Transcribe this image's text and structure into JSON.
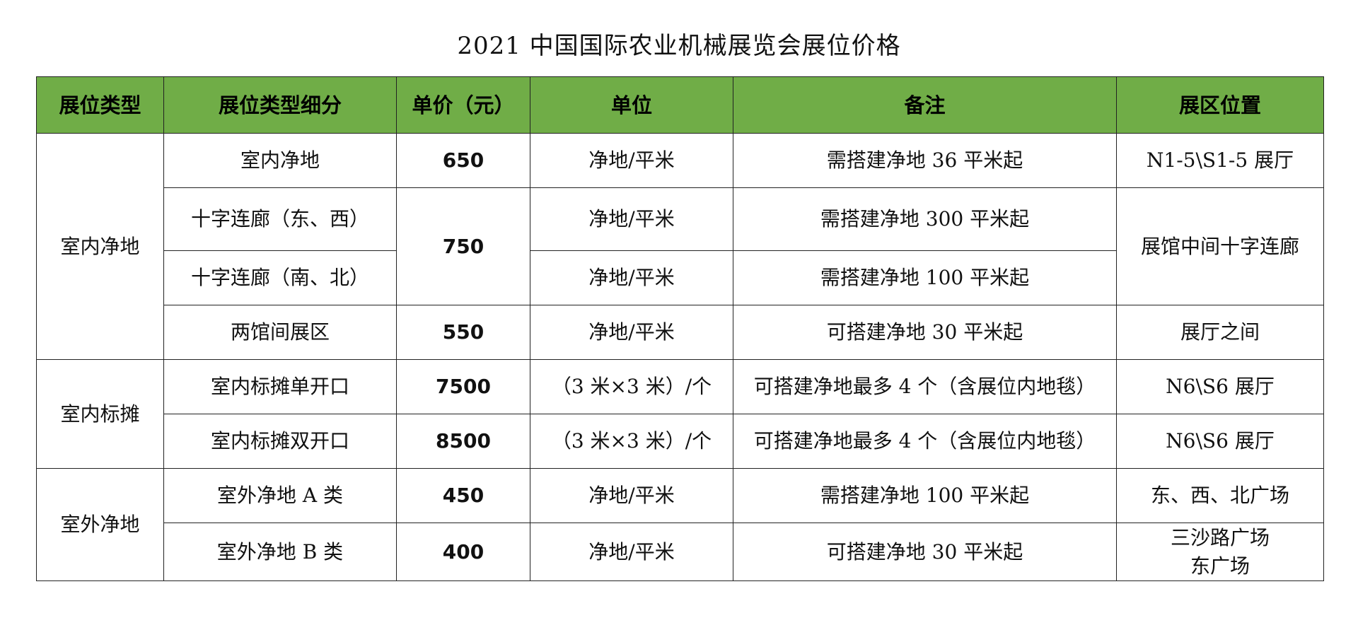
{
  "title": "2021 中国国际农业机械展览会展位价格",
  "headers": [
    "展位类型",
    "展位类型细分",
    "单价（元）",
    "单位",
    "备注",
    "展区位置"
  ],
  "groups": [
    {
      "type": "室内净地",
      "rows": [
        {
          "sub": "室内净地",
          "price": "650",
          "unit": "净地/平米",
          "note": "需搭建净地 36 平米起",
          "location": "N1-5\\S1-5 展厅"
        },
        {
          "sub": "十字连廊（东、西）",
          "price": "750",
          "unit": "净地/平米",
          "note": "需搭建净地 300 平米起",
          "location": "展馆中间十字连廊"
        },
        {
          "sub": "十字连廊（南、北）",
          "unit": "净地/平米",
          "note": "需搭建净地 100 平米起"
        },
        {
          "sub": "两馆间展区",
          "price": "550",
          "unit": "净地/平米",
          "note": "可搭建净地 30 平米起",
          "location": "展厅之间"
        }
      ]
    },
    {
      "type": "室内标摊",
      "rows": [
        {
          "sub": "室内标摊单开口",
          "price": "7500",
          "unit": "（3 米×3 米）/个",
          "note": "可搭建净地最多 4 个（含展位内地毯）",
          "location": "N6\\S6 展厅"
        },
        {
          "sub": "室内标摊双开口",
          "price": "8500",
          "unit": "（3 米×3 米）/个",
          "note": "可搭建净地最多 4 个（含展位内地毯）",
          "location": "N6\\S6 展厅"
        }
      ]
    },
    {
      "type": "室外净地",
      "rows": [
        {
          "sub": "室外净地 A 类",
          "price": "450",
          "unit": "净地/平米",
          "note": "需搭建净地 100 平米起",
          "location": "东、西、北广场"
        },
        {
          "sub": "室外净地 B 类",
          "price": "400",
          "unit": "净地/平米",
          "note": "可搭建净地 30 平米起",
          "location_lines": [
            "三沙路广场",
            "东广场"
          ]
        }
      ]
    }
  ]
}
